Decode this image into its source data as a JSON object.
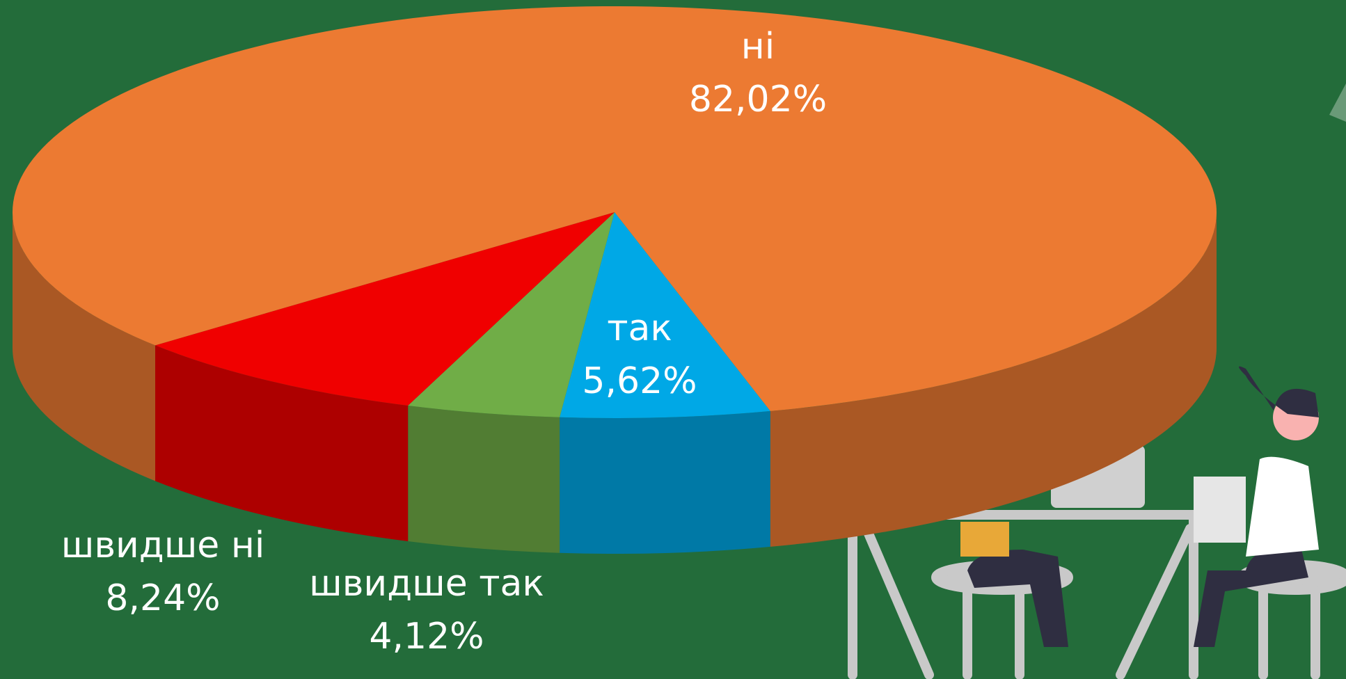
{
  "chart_data": {
    "type": "pie3d",
    "categories": [
      "так",
      "швидше так",
      "швидше ні",
      "ні"
    ],
    "values": [
      5.62,
      4.12,
      8.24,
      82.02
    ],
    "value_labels": [
      "5,62%",
      "4,12%",
      "8,24%",
      "82,02%"
    ],
    "colors": [
      "#00a8e6",
      "#70ad47",
      "#f00000",
      "#ec7a32"
    ]
  }
}
